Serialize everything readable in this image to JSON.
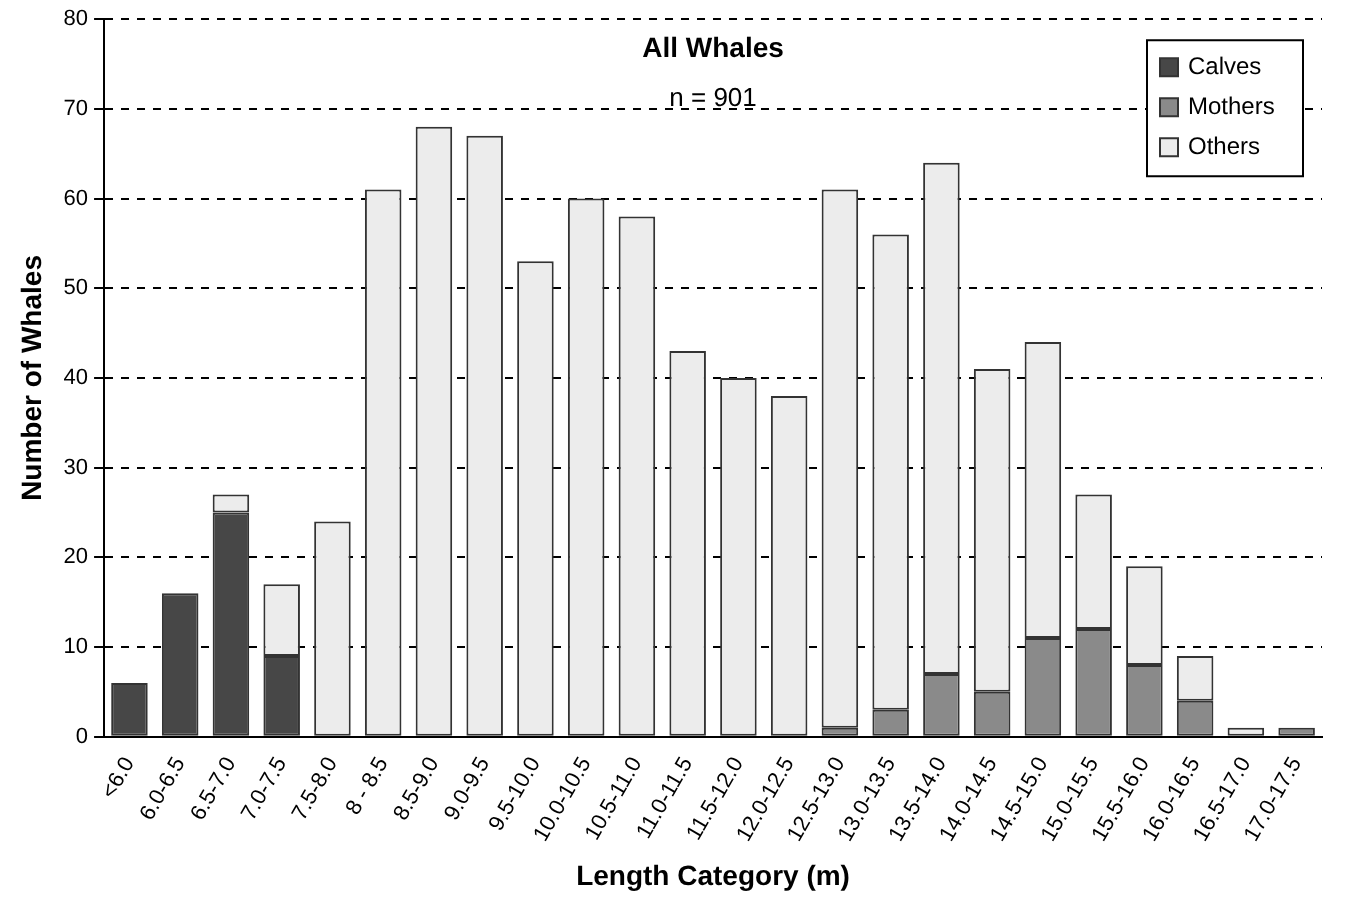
{
  "chart_data": {
    "type": "bar",
    "title": "All Whales",
    "annotations": [
      "n = 901"
    ],
    "xlabel": "Length Category (m)",
    "ylabel": "Number of Whales",
    "categories": [
      "<6.0",
      "6.0-6.5",
      "6.5-7.0",
      "7.0-7.5",
      "7.5-8.0",
      "8 - 8.5",
      "8.5-9.0",
      "9.0-9.5",
      "9.5-10.0",
      "10.0-10.5",
      "10.5-11.0",
      "11.0-11.5",
      "11.5-12.0",
      "12.0-12.5",
      "12.5-13.0",
      "13.0-13.5",
      "13.5-14.0",
      "14.0-14.5",
      "14.5-15.0",
      "15.0-15.5",
      "15.5-16.0",
      "16.0-16.5",
      "16.5-17.0",
      "17.0-17.5"
    ],
    "stacked": true,
    "series": [
      {
        "name": "Calves",
        "color": "#474747",
        "values": [
          6,
          16,
          25,
          9,
          0,
          0,
          0,
          0,
          0,
          0,
          0,
          0,
          0,
          0,
          0,
          0,
          0,
          0,
          0,
          0,
          0,
          0,
          0,
          0
        ]
      },
      {
        "name": "Mothers",
        "color": "#8a8a8a",
        "values": [
          0,
          0,
          0,
          0,
          0,
          0,
          0,
          0,
          0,
          0,
          0,
          0,
          0,
          0,
          1,
          3,
          7,
          5,
          11,
          12,
          8,
          4,
          0,
          1
        ]
      },
      {
        "name": "Others",
        "color": "#ececec",
        "values": [
          0,
          0,
          2,
          8,
          24,
          61,
          68,
          67,
          53,
          60,
          58,
          43,
          40,
          38,
          60,
          53,
          57,
          36,
          33,
          15,
          11,
          5,
          1,
          0
        ]
      }
    ],
    "ylim": [
      0,
      80
    ],
    "yticks": [
      0,
      10,
      20,
      30,
      40,
      50,
      60,
      70,
      80
    ],
    "grid": "y",
    "legend": "top right"
  }
}
